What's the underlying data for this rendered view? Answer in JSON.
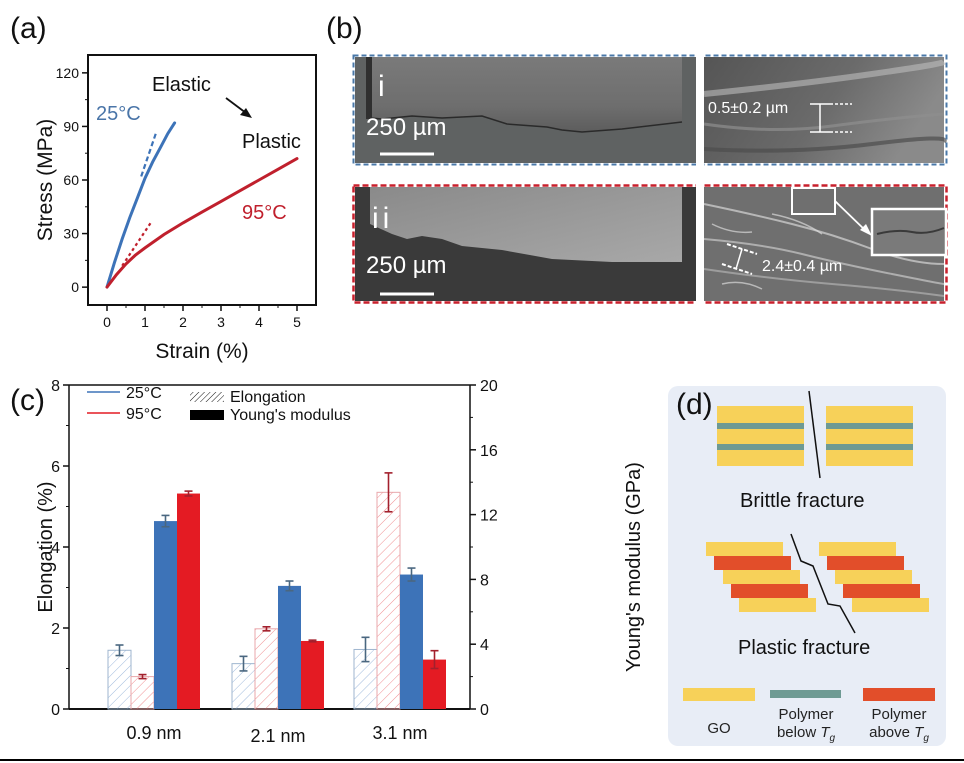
{
  "panels": {
    "a": {
      "label": "(a)"
    },
    "b": {
      "label": "(b)"
    },
    "c": {
      "label": "(c)"
    },
    "d": {
      "label": "(d)"
    }
  },
  "colors": {
    "blue": "#3d73b8",
    "red": "#e41b23",
    "dark_red": "#c0202d",
    "go_yellow": "#f7d159",
    "polymer_below": "#6e9a93",
    "polymer_above": "#e24e2a",
    "panel_d_bg": "#e8edf6"
  },
  "chart_data": [
    {
      "id": "a",
      "type": "line",
      "title": "",
      "xlabel": "Strain (%)",
      "ylabel": "Stress (MPa)",
      "xlim": [
        -0.5,
        5.5
      ],
      "ylim": [
        -10,
        130
      ],
      "xticks": [
        0,
        1,
        2,
        3,
        4,
        5
      ],
      "yticks": [
        0,
        30,
        60,
        90,
        120
      ],
      "grid": false,
      "series": [
        {
          "name": "25°C",
          "color": "#3d73b8",
          "x": [
            0,
            0.2,
            0.4,
            0.6,
            0.8,
            1.0,
            1.2,
            1.4,
            1.6,
            1.78
          ],
          "y": [
            0,
            14,
            27,
            39,
            50,
            61,
            70,
            78,
            86,
            92
          ]
        },
        {
          "name": "95°C",
          "color": "#c0202d",
          "x": [
            0,
            0.25,
            0.5,
            0.75,
            1.0,
            1.5,
            2.0,
            2.5,
            3.0,
            3.5,
            4.0,
            4.5,
            5.0
          ],
          "y": [
            0,
            7,
            13,
            18,
            22,
            29.5,
            36,
            42,
            48,
            54,
            60,
            66,
            72
          ]
        }
      ],
      "tangent_lines": [
        {
          "series": "25°C",
          "x": [
            0.9,
            1.3
          ],
          "y": [
            62,
            87
          ],
          "style": "dashed"
        },
        {
          "series": "95°C",
          "x": [
            0.4,
            1.15
          ],
          "y": [
            12,
            36
          ],
          "style": "dotted"
        }
      ],
      "annotations": [
        {
          "text": "25°C",
          "color": "#4a75a8"
        },
        {
          "text": "95°C",
          "color": "#c0202d"
        },
        {
          "text": "Elastic",
          "color": "#111111"
        },
        {
          "text": "Plastic",
          "color": "#111111"
        },
        {
          "text": "arrow",
          "from": "Elastic",
          "to": "Plastic"
        }
      ]
    },
    {
      "id": "c",
      "type": "bar",
      "title": "",
      "categories": [
        "0.9 nm",
        "2.1 nm",
        "3.1 nm"
      ],
      "xlabel": "",
      "ylabel": "Elongation (%)",
      "ylabel_right": "Young's modulus (GPa)",
      "ylim": [
        0,
        8
      ],
      "ylim_right": [
        0,
        20
      ],
      "yticks": [
        0,
        2,
        4,
        6,
        8
      ],
      "yticks_right": [
        0,
        4,
        8,
        12,
        16,
        20
      ],
      "grid": false,
      "legend": {
        "placement": "top-left",
        "entries": [
          {
            "label": "25°C",
            "kind": "line",
            "color": "#3d73b8"
          },
          {
            "label": "95°C",
            "kind": "line",
            "color": "#e41b23"
          },
          {
            "label": "Elongation",
            "kind": "hatched"
          },
          {
            "label": "Young's modulus",
            "kind": "solid"
          }
        ]
      },
      "series": [
        {
          "name": "Elongation 25°C",
          "axis": "left",
          "style": "hatched",
          "color": "#3d73b8",
          "values": [
            1.45,
            1.12,
            1.47
          ],
          "errors": [
            0.13,
            0.18,
            0.3
          ]
        },
        {
          "name": "Elongation 95°C",
          "axis": "left",
          "style": "hatched",
          "color": "#e41b23",
          "values": [
            0.8,
            1.98,
            5.35
          ],
          "errors": [
            0.05,
            0.05,
            0.48
          ]
        },
        {
          "name": "Young's modulus 25°C",
          "axis": "right",
          "style": "solid",
          "color": "#3d73b8",
          "values": [
            11.6,
            7.6,
            8.3
          ],
          "errors": [
            0.35,
            0.3,
            0.4
          ]
        },
        {
          "name": "Young's modulus 95°C",
          "axis": "right",
          "style": "solid",
          "color": "#e41b23",
          "values": [
            13.3,
            4.2,
            3.05
          ],
          "errors": [
            0.15,
            0.05,
            0.55
          ]
        }
      ]
    }
  ],
  "sem": {
    "row_i": {
      "label": "i",
      "scale_bar": "250 µm",
      "measure": "0.5±0.2 µm",
      "border_color": "#4a78a8"
    },
    "row_ii": {
      "label": "ii",
      "scale_bar": "250 µm",
      "measure": "2.4±0.4 µm",
      "border_color": "#c8202d"
    }
  },
  "schematic": {
    "brittle_label": "Brittle fracture",
    "plastic_label": "Plastic fracture",
    "legend": [
      {
        "name": "GO",
        "line1": "GO",
        "line2": ""
      },
      {
        "name": "polymer-below",
        "line1": "Polymer",
        "line2": "below ",
        "tg": "T",
        "tg_sub": "g"
      },
      {
        "name": "polymer-above",
        "line1": "Polymer",
        "line2": "above ",
        "tg": "T",
        "tg_sub": "g"
      }
    ]
  }
}
